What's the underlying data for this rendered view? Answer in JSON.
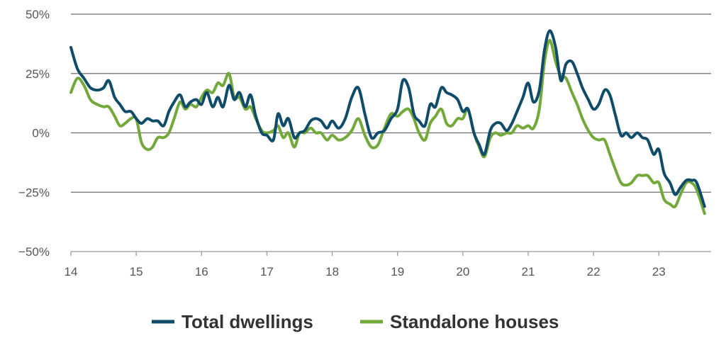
{
  "chart_data": {
    "type": "line",
    "title": "",
    "xlabel": "",
    "ylabel": "",
    "xlim": [
      14,
      23.8
    ],
    "ylim": [
      -50,
      50
    ],
    "grid": true,
    "legend_position": "bottom",
    "x_ticks": [
      14,
      15,
      16,
      17,
      18,
      19,
      20,
      21,
      22,
      23
    ],
    "x_tick_labels": [
      "14",
      "15",
      "16",
      "17",
      "18",
      "19",
      "20",
      "21",
      "22",
      "23"
    ],
    "y_ticks": [
      50,
      25,
      0,
      -25,
      -50
    ],
    "y_tick_labels": [
      "50%",
      "25%",
      "0%",
      "−25%",
      "−50%"
    ],
    "series": [
      {
        "name": "Total dwellings",
        "color": "#0f4c6a",
        "points": [
          [
            14.0,
            36
          ],
          [
            14.1,
            27
          ],
          [
            14.2,
            23
          ],
          [
            14.3,
            19
          ],
          [
            14.4,
            18
          ],
          [
            14.5,
            19
          ],
          [
            14.58,
            22
          ],
          [
            14.67,
            15
          ],
          [
            14.75,
            12
          ],
          [
            14.83,
            9
          ],
          [
            14.92,
            9
          ],
          [
            15.0,
            6
          ],
          [
            15.08,
            4
          ],
          [
            15.17,
            6
          ],
          [
            15.25,
            5
          ],
          [
            15.33,
            5
          ],
          [
            15.42,
            3
          ],
          [
            15.5,
            9
          ],
          [
            15.58,
            13
          ],
          [
            15.67,
            16
          ],
          [
            15.75,
            11
          ],
          [
            15.83,
            13
          ],
          [
            15.92,
            14
          ],
          [
            16.0,
            12
          ],
          [
            16.08,
            17
          ],
          [
            16.17,
            11
          ],
          [
            16.25,
            15
          ],
          [
            16.33,
            11
          ],
          [
            16.42,
            20
          ],
          [
            16.5,
            14
          ],
          [
            16.58,
            17
          ],
          [
            16.67,
            11
          ],
          [
            16.75,
            16
          ],
          [
            16.83,
            7
          ],
          [
            16.92,
            0
          ],
          [
            17.0,
            -1
          ],
          [
            17.1,
            -3
          ],
          [
            17.17,
            8
          ],
          [
            17.25,
            3
          ],
          [
            17.33,
            6
          ],
          [
            17.42,
            -2
          ],
          [
            17.5,
            0
          ],
          [
            17.58,
            1
          ],
          [
            17.67,
            5
          ],
          [
            17.75,
            6
          ],
          [
            17.83,
            5
          ],
          [
            17.92,
            2
          ],
          [
            18.0,
            5
          ],
          [
            18.1,
            2
          ],
          [
            18.2,
            6
          ],
          [
            18.3,
            15
          ],
          [
            18.4,
            19
          ],
          [
            18.5,
            8
          ],
          [
            18.6,
            -2
          ],
          [
            18.7,
            0
          ],
          [
            18.8,
            1
          ],
          [
            18.9,
            6
          ],
          [
            19.0,
            10
          ],
          [
            19.08,
            22
          ],
          [
            19.17,
            19
          ],
          [
            19.25,
            8
          ],
          [
            19.33,
            5
          ],
          [
            19.42,
            3
          ],
          [
            19.5,
            12
          ],
          [
            19.58,
            11
          ],
          [
            19.67,
            19
          ],
          [
            19.75,
            17
          ],
          [
            19.83,
            16
          ],
          [
            19.92,
            14
          ],
          [
            20.0,
            9
          ],
          [
            20.08,
            10
          ],
          [
            20.17,
            0
          ],
          [
            20.25,
            -5
          ],
          [
            20.33,
            -9
          ],
          [
            20.42,
            1
          ],
          [
            20.5,
            4
          ],
          [
            20.58,
            4
          ],
          [
            20.67,
            1
          ],
          [
            20.75,
            4
          ],
          [
            20.83,
            9
          ],
          [
            20.92,
            15
          ],
          [
            21.0,
            21
          ],
          [
            21.08,
            13
          ],
          [
            21.17,
            18
          ],
          [
            21.25,
            35
          ],
          [
            21.33,
            43
          ],
          [
            21.42,
            36
          ],
          [
            21.5,
            22
          ],
          [
            21.58,
            29
          ],
          [
            21.67,
            30
          ],
          [
            21.75,
            25
          ],
          [
            21.83,
            19
          ],
          [
            21.92,
            14
          ],
          [
            22.0,
            10
          ],
          [
            22.08,
            12
          ],
          [
            22.17,
            18
          ],
          [
            22.25,
            16
          ],
          [
            22.33,
            8
          ],
          [
            22.42,
            -1
          ],
          [
            22.5,
            0
          ],
          [
            22.58,
            -2
          ],
          [
            22.67,
            0
          ],
          [
            22.75,
            -2
          ],
          [
            22.83,
            -3
          ],
          [
            22.92,
            -9
          ],
          [
            23.0,
            -7
          ],
          [
            23.08,
            -17
          ],
          [
            23.17,
            -21
          ],
          [
            23.25,
            -26
          ],
          [
            23.33,
            -23
          ],
          [
            23.42,
            -20
          ],
          [
            23.5,
            -20
          ],
          [
            23.58,
            -21
          ],
          [
            23.7,
            -31
          ]
        ]
      },
      {
        "name": "Standalone houses",
        "color": "#73a83a",
        "points": [
          [
            14.0,
            17
          ],
          [
            14.1,
            23
          ],
          [
            14.2,
            20
          ],
          [
            14.3,
            14
          ],
          [
            14.4,
            12
          ],
          [
            14.5,
            11
          ],
          [
            14.58,
            11
          ],
          [
            14.67,
            7
          ],
          [
            14.75,
            3
          ],
          [
            14.83,
            4
          ],
          [
            14.92,
            6
          ],
          [
            15.0,
            6
          ],
          [
            15.08,
            -4
          ],
          [
            15.17,
            -7
          ],
          [
            15.25,
            -6
          ],
          [
            15.33,
            -2
          ],
          [
            15.42,
            -2
          ],
          [
            15.5,
            0
          ],
          [
            15.58,
            6
          ],
          [
            15.67,
            13
          ],
          [
            15.75,
            10
          ],
          [
            15.83,
            12
          ],
          [
            15.92,
            11
          ],
          [
            16.0,
            15
          ],
          [
            16.08,
            18
          ],
          [
            16.17,
            17
          ],
          [
            16.25,
            21
          ],
          [
            16.33,
            20
          ],
          [
            16.42,
            25
          ],
          [
            16.5,
            15
          ],
          [
            16.58,
            15
          ],
          [
            16.67,
            10
          ],
          [
            16.75,
            11
          ],
          [
            16.83,
            6
          ],
          [
            16.92,
            1
          ],
          [
            17.0,
            0
          ],
          [
            17.1,
            1
          ],
          [
            17.17,
            3
          ],
          [
            17.25,
            -2
          ],
          [
            17.33,
            0
          ],
          [
            17.42,
            -6
          ],
          [
            17.5,
            0
          ],
          [
            17.58,
            0
          ],
          [
            17.67,
            2
          ],
          [
            17.75,
            0
          ],
          [
            17.83,
            0
          ],
          [
            17.92,
            -3
          ],
          [
            18.0,
            -1
          ],
          [
            18.1,
            -3
          ],
          [
            18.2,
            -2
          ],
          [
            18.3,
            1
          ],
          [
            18.4,
            6
          ],
          [
            18.5,
            -1
          ],
          [
            18.6,
            -6
          ],
          [
            18.7,
            -5
          ],
          [
            18.8,
            2
          ],
          [
            18.9,
            8
          ],
          [
            19.0,
            7
          ],
          [
            19.08,
            9
          ],
          [
            19.17,
            10
          ],
          [
            19.25,
            6
          ],
          [
            19.33,
            0
          ],
          [
            19.42,
            -3
          ],
          [
            19.5,
            4
          ],
          [
            19.58,
            7
          ],
          [
            19.67,
            10
          ],
          [
            19.75,
            4
          ],
          [
            19.83,
            3
          ],
          [
            19.92,
            6
          ],
          [
            20.0,
            6
          ],
          [
            20.08,
            10
          ],
          [
            20.17,
            0
          ],
          [
            20.25,
            -6
          ],
          [
            20.33,
            -10
          ],
          [
            20.42,
            -2
          ],
          [
            20.5,
            0
          ],
          [
            20.58,
            -1
          ],
          [
            20.67,
            0
          ],
          [
            20.75,
            0
          ],
          [
            20.83,
            3
          ],
          [
            20.92,
            2
          ],
          [
            21.0,
            3
          ],
          [
            21.08,
            2
          ],
          [
            21.17,
            10
          ],
          [
            21.25,
            30
          ],
          [
            21.33,
            39
          ],
          [
            21.42,
            30
          ],
          [
            21.5,
            24
          ],
          [
            21.58,
            23
          ],
          [
            21.67,
            17
          ],
          [
            21.75,
            12
          ],
          [
            21.83,
            6
          ],
          [
            21.92,
            1
          ],
          [
            22.0,
            -2
          ],
          [
            22.08,
            -3
          ],
          [
            22.17,
            -3
          ],
          [
            22.25,
            -9
          ],
          [
            22.33,
            -15
          ],
          [
            22.42,
            -21
          ],
          [
            22.5,
            -22
          ],
          [
            22.58,
            -21
          ],
          [
            22.67,
            -18
          ],
          [
            22.75,
            -18
          ],
          [
            22.83,
            -18
          ],
          [
            22.92,
            -21
          ],
          [
            23.0,
            -21
          ],
          [
            23.08,
            -28
          ],
          [
            23.17,
            -30
          ],
          [
            23.25,
            -31
          ],
          [
            23.33,
            -26
          ],
          [
            23.42,
            -21
          ],
          [
            23.5,
            -21
          ],
          [
            23.58,
            -24
          ],
          [
            23.7,
            -34
          ]
        ]
      }
    ]
  },
  "legend": {
    "items": [
      {
        "label": "Total dwellings",
        "color": "#0f4c6a"
      },
      {
        "label": "Standalone houses",
        "color": "#73a83a"
      }
    ]
  }
}
